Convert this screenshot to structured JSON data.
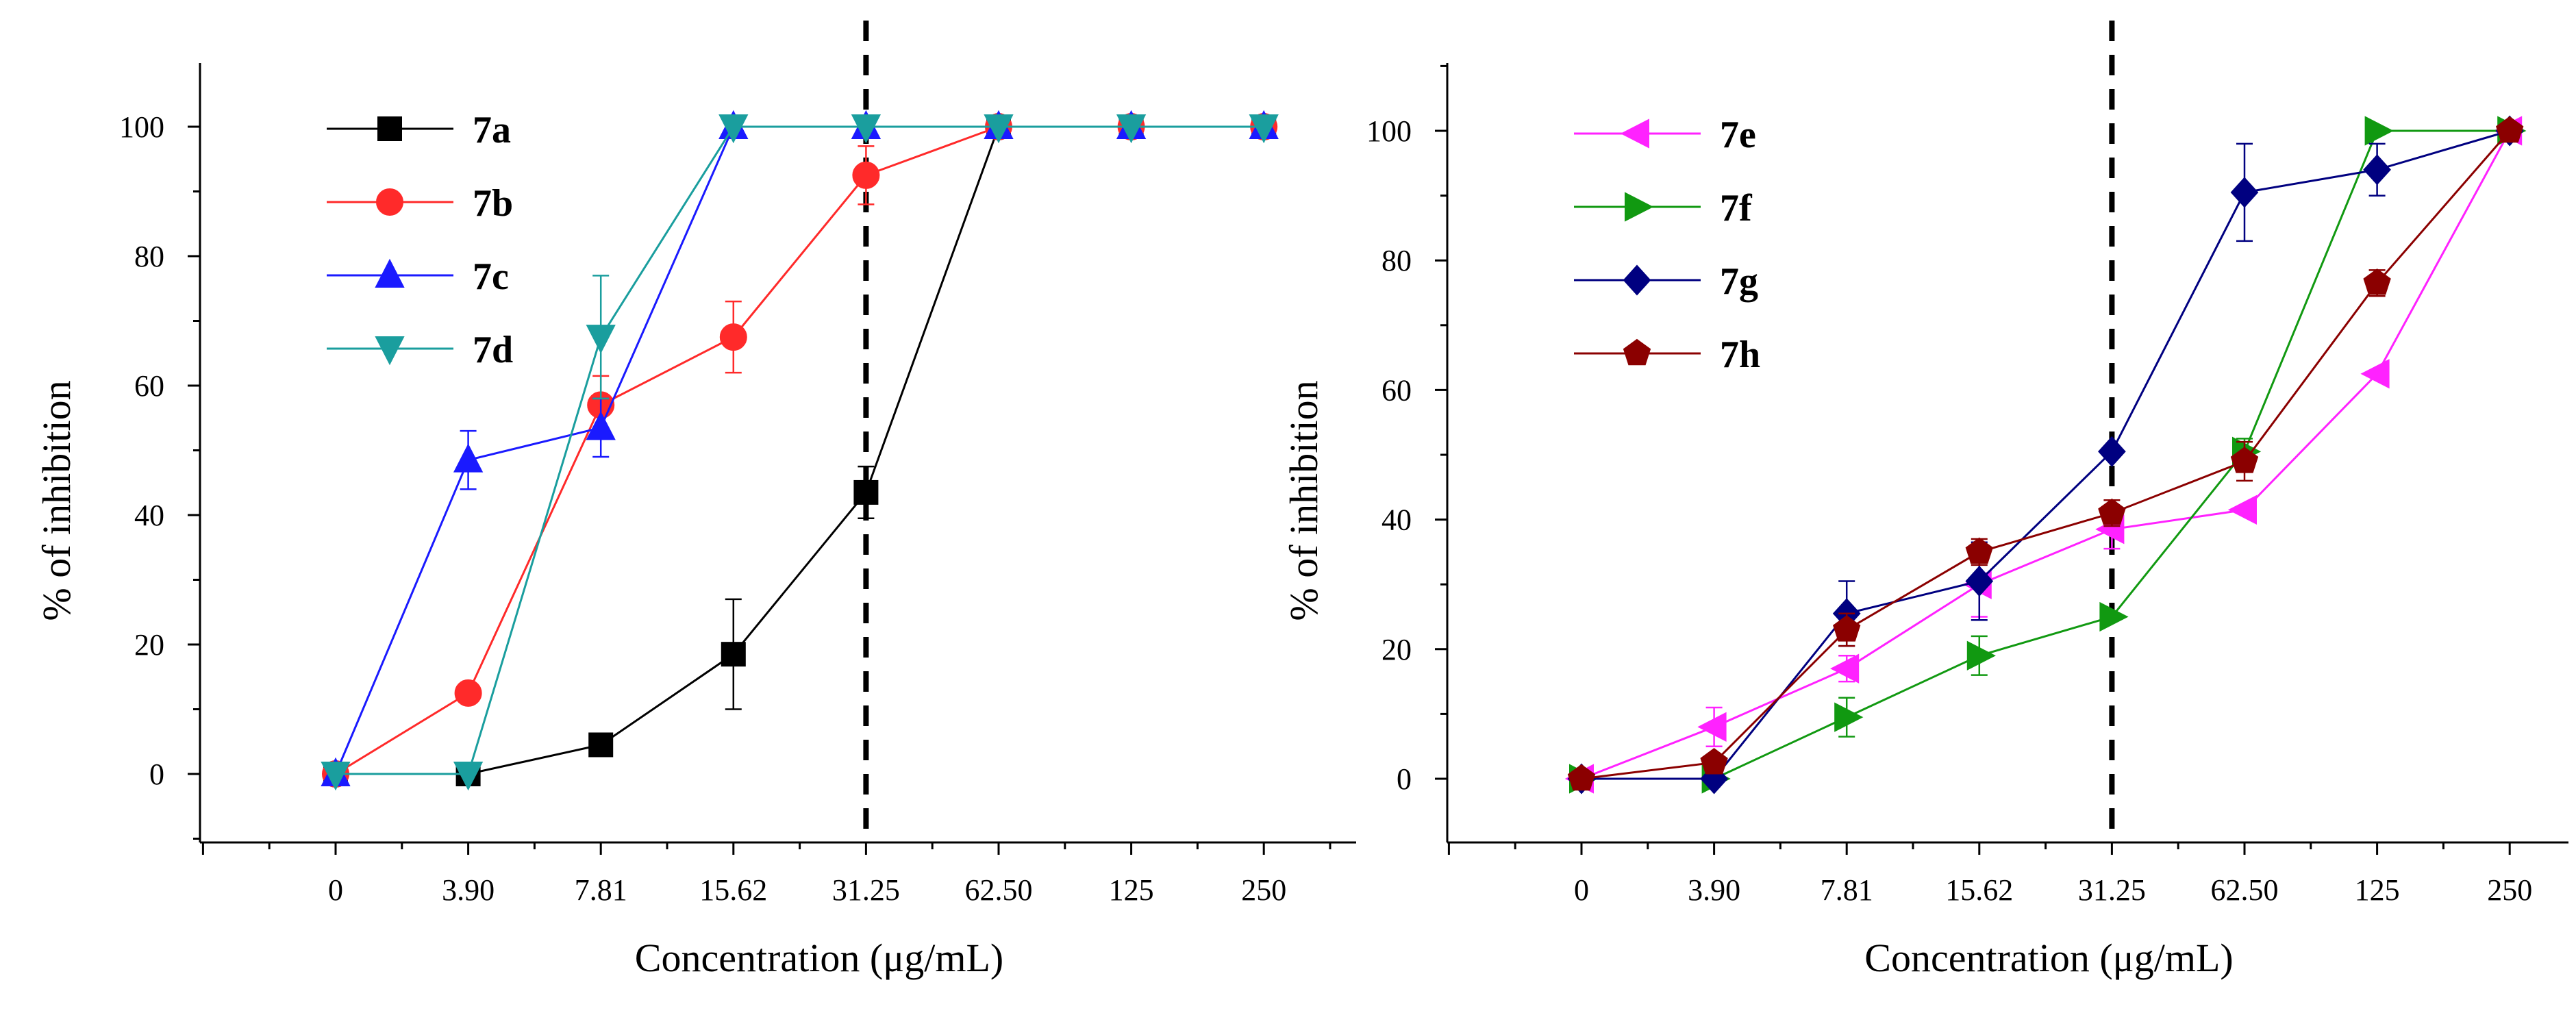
{
  "chart_data": [
    {
      "type": "line",
      "title": "",
      "xlabel": "Concentration (μg/mL)",
      "ylabel": "% of inhibition",
      "categories": [
        "0",
        "3.90",
        "7.81",
        "15.62",
        "31.25",
        "62.50",
        "125",
        "250"
      ],
      "yticks": [
        "0",
        "20",
        "40",
        "60",
        "80",
        "100"
      ],
      "ylim": [
        -10,
        110
      ],
      "reference_line": {
        "category": "31.25",
        "style": "dashed"
      },
      "legend": "top-left",
      "series": [
        {
          "name": "7a",
          "color": "#000000",
          "marker": "square",
          "values": [
            0,
            0,
            4.5,
            18.5,
            43.5,
            100,
            100,
            100
          ],
          "errors": [
            0,
            0,
            0.5,
            8.5,
            4,
            0,
            0,
            0
          ]
        },
        {
          "name": "7b",
          "color": "#ff2a2a",
          "marker": "circle",
          "values": [
            0,
            12.5,
            57,
            67.5,
            92.5,
            100,
            100,
            100
          ],
          "errors": [
            0,
            0,
            4.5,
            5.5,
            4.5,
            0,
            0,
            0
          ]
        },
        {
          "name": "7c",
          "color": "#1a1aff",
          "marker": "triangle-up",
          "values": [
            0,
            48.5,
            53.5,
            100,
            100,
            100,
            100,
            100
          ],
          "errors": [
            0,
            4.5,
            4.5,
            0,
            0,
            0,
            0,
            0
          ]
        },
        {
          "name": "7d",
          "color": "#1a9e9e",
          "marker": "triangle-down",
          "values": [
            0,
            0,
            67.5,
            100,
            100,
            100,
            100,
            100
          ],
          "errors": [
            0,
            0,
            9.5,
            0,
            0,
            0,
            0,
            0
          ]
        }
      ]
    },
    {
      "type": "line",
      "title": "",
      "xlabel": "Concentration (μg/mL)",
      "ylabel": "% of inhibition",
      "categories": [
        "0",
        "3.90",
        "7.81",
        "15.62",
        "31.25",
        "62.50",
        "125",
        "250"
      ],
      "yticks": [
        "0",
        "20",
        "40",
        "60",
        "80",
        "100"
      ],
      "ylim": [
        -10,
        110
      ],
      "reference_line": {
        "category": "31.25",
        "style": "dashed"
      },
      "legend": "top-left",
      "series": [
        {
          "name": "7e",
          "color": "#ff22ff",
          "marker": "triangle-left",
          "values": [
            0,
            8,
            17,
            30,
            38.5,
            41.5,
            62.5,
            100
          ],
          "errors": [
            0,
            3,
            2,
            5,
            3,
            0,
            0,
            0
          ]
        },
        {
          "name": "7f",
          "color": "#119911",
          "marker": "triangle-right",
          "values": [
            0,
            0,
            9.5,
            19,
            25,
            50.5,
            100,
            100
          ],
          "errors": [
            0,
            0,
            3,
            3,
            0,
            2,
            0,
            0
          ]
        },
        {
          "name": "7g",
          "color": "#000080",
          "marker": "diamond",
          "values": [
            0,
            0,
            25.5,
            30.5,
            50.5,
            90.5,
            94,
            100
          ],
          "errors": [
            0,
            0,
            5,
            6,
            0,
            7.5,
            4,
            0
          ]
        },
        {
          "name": "7h",
          "color": "#8b0000",
          "marker": "pentagon",
          "values": [
            0,
            2.5,
            23,
            35,
            41,
            49,
            76.5,
            100
          ],
          "errors": [
            0,
            0,
            2.5,
            2,
            2,
            3,
            2,
            0
          ]
        }
      ]
    }
  ]
}
